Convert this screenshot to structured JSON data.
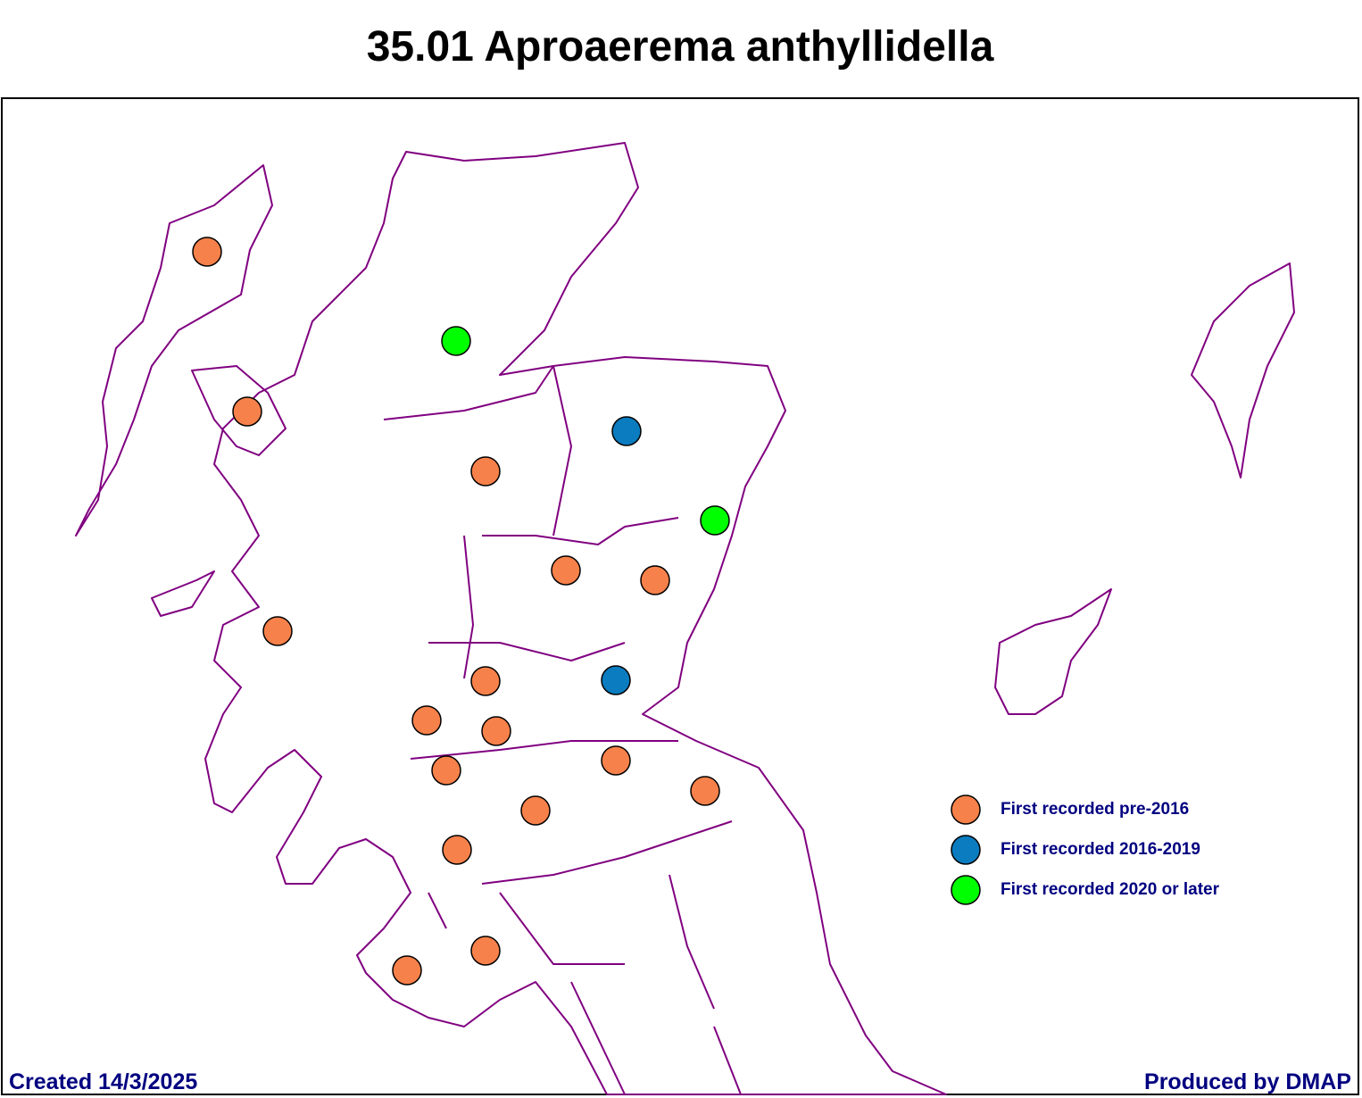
{
  "title": "35.01 Aproaerema anthyllidella",
  "legend": [
    {
      "label": "First recorded pre-2016",
      "color": "#f7814a"
    },
    {
      "label": "First recorded 2016-2019",
      "color": "#0a7cbf"
    },
    {
      "label": "First recorded 2020 or later",
      "color": "#00ff00"
    }
  ],
  "footer": {
    "created": "Created 14/3/2025",
    "produced": "Produced by DMAP"
  }
}
